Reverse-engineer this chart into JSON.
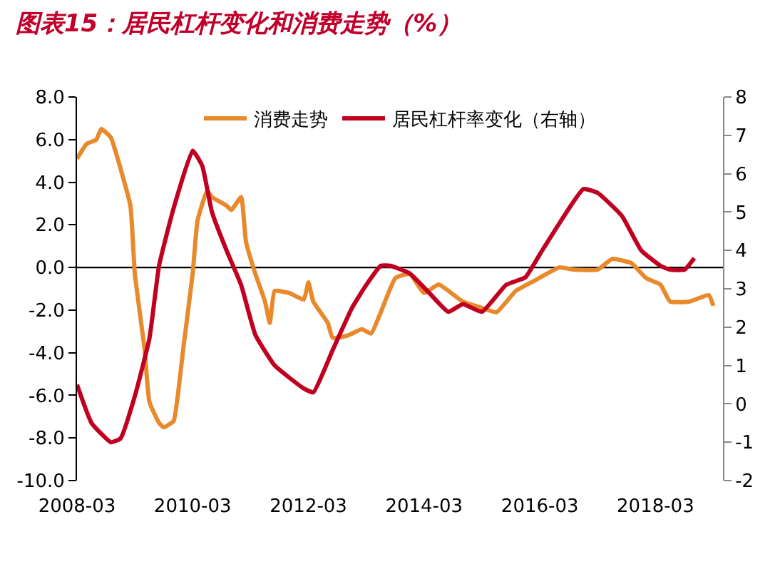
{
  "chart_data": {
    "type": "line",
    "title": "图表15：居民杠杆变化和消费走势（%）",
    "series": [
      {
        "name": "消费走势",
        "color": "#e8892b",
        "x": [
          "2008-03",
          "2008-05",
          "2008-07",
          "2008-08",
          "2008-10",
          "2008-11",
          "2009-02",
          "2009-03",
          "2009-05",
          "2009-06",
          "2009-08",
          "2009-09",
          "2009-11",
          "2009-12",
          "2010-01",
          "2010-03",
          "2010-04",
          "2010-06",
          "2010-07",
          "2010-10",
          "2010-11",
          "2011-01",
          "2011-02",
          "2011-04",
          "2011-06",
          "2011-07",
          "2011-08",
          "2011-11",
          "2012-02",
          "2012-03",
          "2012-04",
          "2012-07",
          "2012-08",
          "2012-11",
          "2013-02",
          "2013-04",
          "2013-06",
          "2013-09",
          "2013-12",
          "2014-03",
          "2014-06",
          "2014-11",
          "2015-03",
          "2015-06",
          "2015-10",
          "2016-02",
          "2016-07",
          "2016-10",
          "2017-03",
          "2017-06",
          "2017-10",
          "2018-01",
          "2018-04",
          "2018-06",
          "2018-10",
          "2019-02",
          "2019-03"
        ],
        "values": [
          5.1,
          5.8,
          6.0,
          6.5,
          6.1,
          5.4,
          2.9,
          -0.3,
          -3.8,
          -6.3,
          -7.3,
          -7.5,
          -7.2,
          -5.8,
          -3.8,
          -0.3,
          2.2,
          3.6,
          3.3,
          2.9,
          2.7,
          3.3,
          1.2,
          -0.3,
          -1.6,
          -2.6,
          -1.1,
          -1.2,
          -1.5,
          -0.7,
          -1.6,
          -2.6,
          -3.3,
          -3.2,
          -2.9,
          -3.1,
          -2.1,
          -0.5,
          -0.3,
          -1.2,
          -0.8,
          -1.6,
          -1.9,
          -2.1,
          -1.1,
          -0.6,
          0.0,
          -0.1,
          -0.1,
          0.4,
          0.2,
          -0.5,
          -0.8,
          -1.6,
          -1.6,
          -1.3,
          -1.8
        ]
      },
      {
        "name": "居民杠杆率变化（右轴）",
        "color": "#c00020",
        "axis": "y2",
        "x": [
          "2008-03",
          "2008-06",
          "2008-10",
          "2008-12",
          "2009-03",
          "2009-06",
          "2009-08",
          "2009-11",
          "2010-03",
          "2010-05",
          "2010-07",
          "2010-10",
          "2011-01",
          "2011-04",
          "2011-08",
          "2012-02",
          "2012-04",
          "2012-08",
          "2012-12",
          "2013-03",
          "2013-06",
          "2013-08",
          "2013-12",
          "2014-04",
          "2014-08",
          "2014-11",
          "2015-03",
          "2015-08",
          "2015-12",
          "2016-03",
          "2016-07",
          "2016-12",
          "2017-03",
          "2017-08",
          "2017-12",
          "2018-04",
          "2018-06",
          "2018-09",
          "2018-11"
        ],
        "values": [
          0.5,
          -0.5,
          -1.0,
          -0.9,
          0.2,
          1.7,
          3.6,
          5.1,
          6.6,
          6.2,
          5.0,
          4.0,
          3.1,
          1.8,
          1.0,
          0.4,
          0.3,
          1.4,
          2.5,
          3.1,
          3.6,
          3.6,
          3.4,
          2.9,
          2.4,
          2.6,
          2.4,
          3.1,
          3.3,
          3.9,
          4.7,
          5.6,
          5.5,
          4.9,
          4.0,
          3.6,
          3.5,
          3.5,
          3.8
        ]
      }
    ],
    "xlim": [
      "2008-03",
      "2019-05"
    ],
    "xticks": [
      "2008-03",
      "2010-03",
      "2012-03",
      "2014-03",
      "2016-03",
      "2018-03"
    ],
    "ylim": [
      -10,
      8
    ],
    "yticks": [
      {
        "value": -10,
        "label": "-10.0"
      },
      {
        "value": -8,
        "label": "-8.0"
      },
      {
        "value": -6,
        "label": "-6.0"
      },
      {
        "value": -4,
        "label": "-4.0"
      },
      {
        "value": -2,
        "label": "-2.0"
      },
      {
        "value": 0,
        "label": "0.0"
      },
      {
        "value": 2,
        "label": "2.0"
      },
      {
        "value": 4,
        "label": "4.0"
      },
      {
        "value": 6,
        "label": "6.0"
      },
      {
        "value": 8,
        "label": "8.0"
      }
    ],
    "y2lim": [
      -2,
      8
    ],
    "y2ticks": [
      -2,
      -1,
      0,
      1,
      2,
      3,
      4,
      5,
      6,
      7,
      8
    ],
    "ref_lines": [
      {
        "axis": "y",
        "value": 0,
        "color": "#000000"
      }
    ],
    "legend": "top",
    "grid": false,
    "marker": "none",
    "line_style": "solid"
  }
}
